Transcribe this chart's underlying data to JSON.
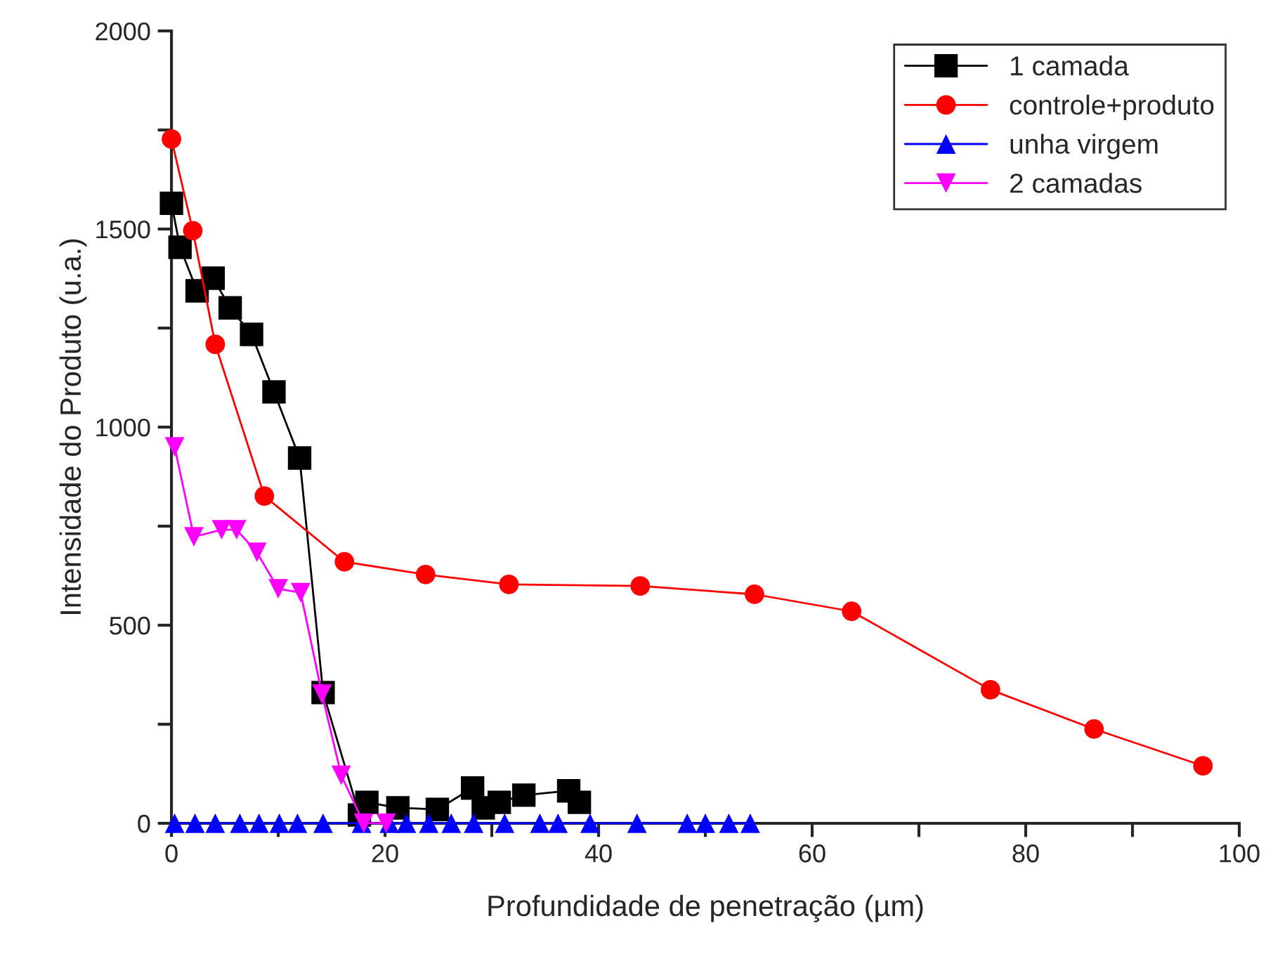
{
  "chart_data": {
    "type": "line",
    "xlabel": "Profundidade de penetração (µm)",
    "ylabel": "Intensidade do Produto (u.a.)",
    "xlim": [
      0,
      100
    ],
    "xticks": [
      0,
      {
        "value": 10,
        "label": null
      },
      20,
      {
        "value": 30,
        "label": null
      },
      40,
      {
        "value": 50,
        "label": null
      },
      60,
      {
        "value": 70,
        "label": null
      },
      80,
      {
        "value": 90,
        "label": null
      },
      100
    ],
    "ylim": [
      0,
      2000
    ],
    "yticks": [
      0,
      {
        "value": 250,
        "label": null
      },
      500,
      {
        "value": 750,
        "label": null
      },
      1000,
      {
        "value": 1250,
        "label": null
      },
      1500,
      {
        "value": 1750,
        "label": null
      },
      2000
    ],
    "legend": "top right",
    "grid": false,
    "series": [
      {
        "name": "1 camada",
        "color": "#000000",
        "marker": "square",
        "x": [
          0,
          0.8,
          2.4,
          3.9,
          5.5,
          7.5,
          9.6,
          12.0,
          14.2,
          17.6,
          18.3,
          21.2,
          24.9,
          28.2,
          29.2,
          30.7,
          33.0,
          37.2,
          38.2
        ],
        "values": [
          1565,
          1454,
          1344,
          1376,
          1301,
          1234,
          1089,
          922,
          330,
          21,
          53,
          39,
          35,
          89,
          39,
          53,
          71,
          82,
          53
        ]
      },
      {
        "name": "controle+produto",
        "color": "#ff0000",
        "marker": "circle",
        "x": [
          0,
          2.0,
          4.1,
          8.7,
          16.2,
          23.8,
          31.6,
          43.9,
          54.6,
          63.7,
          76.7,
          86.4,
          96.6
        ],
        "values": [
          1727,
          1496,
          1209,
          826,
          660,
          628,
          603,
          599,
          578,
          535,
          337,
          238,
          145
        ]
      },
      {
        "name": "unha virgem",
        "color": "#0000ff",
        "marker": "triangle",
        "x": [
          0.3,
          2.2,
          4.1,
          6.4,
          8.2,
          10.1,
          11.8,
          14.2,
          17.8,
          20.4,
          22.0,
          24.1,
          26.2,
          28.3,
          31.2,
          34.5,
          36.2,
          39.2,
          43.6,
          48.3,
          50.0,
          52.2,
          54.2
        ],
        "values": [
          0,
          0,
          0,
          0,
          0,
          0,
          0,
          0,
          0,
          0,
          0,
          0,
          0,
          0,
          0,
          0,
          0,
          0,
          0,
          0,
          0,
          0,
          0
        ]
      },
      {
        "name": "2 camadas",
        "color": "#ff00ff",
        "marker": "triangle_down",
        "x": [
          0.3,
          2.1,
          4.7,
          6.1,
          8.0,
          10.0,
          12.1,
          14.1,
          15.9,
          18.0,
          20.1
        ],
        "values": [
          950,
          723,
          741,
          741,
          684,
          592,
          582,
          326,
          121,
          0,
          0
        ]
      }
    ]
  }
}
